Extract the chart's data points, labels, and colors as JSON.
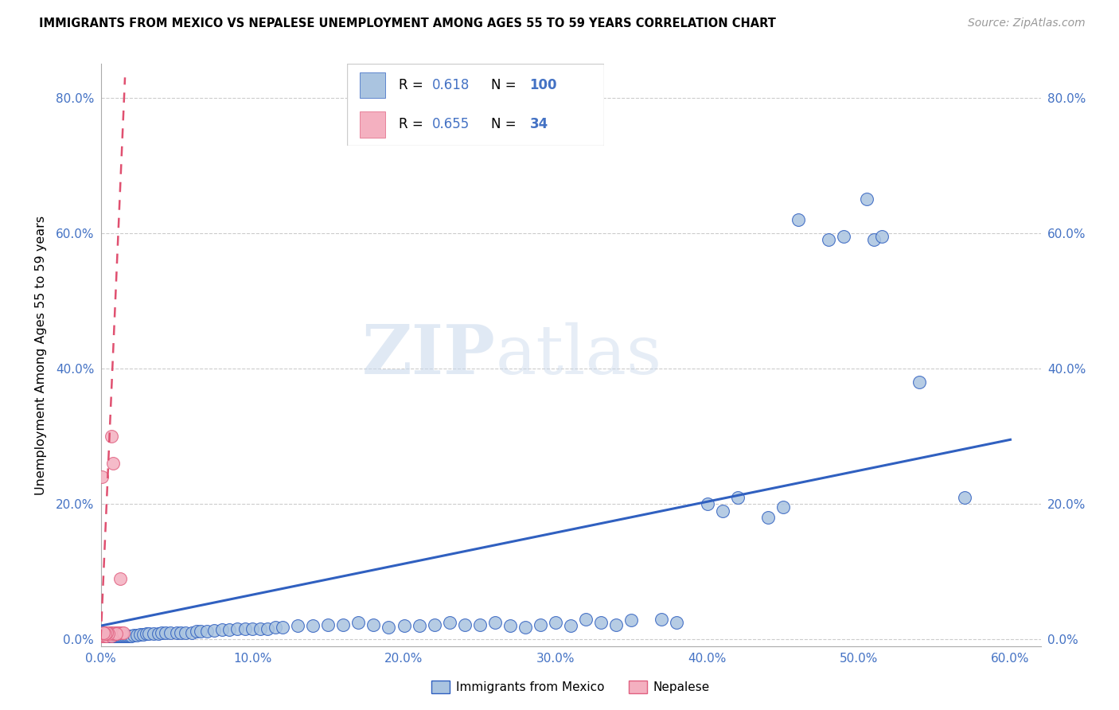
{
  "title": "IMMIGRANTS FROM MEXICO VS NEPALESE UNEMPLOYMENT AMONG AGES 55 TO 59 YEARS CORRELATION CHART",
  "source": "Source: ZipAtlas.com",
  "ylabel": "Unemployment Among Ages 55 to 59 years",
  "xlim": [
    0.0,
    0.62
  ],
  "ylim": [
    -0.01,
    0.85
  ],
  "xticks": [
    0.0,
    0.1,
    0.2,
    0.3,
    0.4,
    0.5,
    0.6
  ],
  "xticklabels": [
    "0.0%",
    "10.0%",
    "20.0%",
    "30.0%",
    "40.0%",
    "50.0%",
    "60.0%"
  ],
  "yticks": [
    0.0,
    0.2,
    0.4,
    0.6,
    0.8
  ],
  "yticklabels": [
    "0.0%",
    "20.0%",
    "40.0%",
    "60.0%",
    "80.0%"
  ],
  "color_mexico": "#aac4e0",
  "color_nepalese": "#f4b0c0",
  "color_line_mexico": "#3060c0",
  "color_line_nepalese": "#e05070",
  "color_axis": "#4472c4",
  "watermark_zip": "ZIP",
  "watermark_atlas": "atlas",
  "mexico_x": [
    0.001,
    0.001,
    0.002,
    0.002,
    0.002,
    0.003,
    0.003,
    0.003,
    0.004,
    0.004,
    0.005,
    0.005,
    0.005,
    0.006,
    0.006,
    0.006,
    0.007,
    0.007,
    0.008,
    0.008,
    0.009,
    0.009,
    0.01,
    0.01,
    0.011,
    0.012,
    0.013,
    0.014,
    0.015,
    0.016,
    0.017,
    0.018,
    0.019,
    0.02,
    0.022,
    0.024,
    0.026,
    0.028,
    0.03,
    0.032,
    0.035,
    0.038,
    0.04,
    0.043,
    0.046,
    0.05,
    0.053,
    0.056,
    0.06,
    0.063,
    0.066,
    0.07,
    0.075,
    0.08,
    0.085,
    0.09,
    0.095,
    0.1,
    0.105,
    0.11,
    0.115,
    0.12,
    0.13,
    0.14,
    0.15,
    0.16,
    0.17,
    0.18,
    0.19,
    0.2,
    0.21,
    0.22,
    0.23,
    0.24,
    0.25,
    0.26,
    0.27,
    0.28,
    0.29,
    0.3,
    0.31,
    0.32,
    0.33,
    0.34,
    0.35,
    0.37,
    0.38,
    0.4,
    0.41,
    0.42,
    0.44,
    0.45,
    0.46,
    0.48,
    0.49,
    0.505,
    0.51,
    0.515,
    0.54,
    0.57
  ],
  "mexico_y": [
    0.005,
    0.008,
    0.005,
    0.005,
    0.005,
    0.005,
    0.005,
    0.005,
    0.005,
    0.005,
    0.005,
    0.005,
    0.005,
    0.005,
    0.005,
    0.005,
    0.005,
    0.005,
    0.005,
    0.005,
    0.005,
    0.005,
    0.005,
    0.005,
    0.005,
    0.005,
    0.005,
    0.005,
    0.005,
    0.005,
    0.005,
    0.005,
    0.005,
    0.005,
    0.006,
    0.006,
    0.007,
    0.007,
    0.008,
    0.008,
    0.009,
    0.009,
    0.01,
    0.01,
    0.01,
    0.01,
    0.01,
    0.01,
    0.01,
    0.012,
    0.012,
    0.012,
    0.013,
    0.014,
    0.014,
    0.015,
    0.015,
    0.015,
    0.016,
    0.016,
    0.018,
    0.018,
    0.02,
    0.02,
    0.022,
    0.022,
    0.025,
    0.022,
    0.018,
    0.02,
    0.02,
    0.022,
    0.025,
    0.022,
    0.022,
    0.025,
    0.02,
    0.018,
    0.022,
    0.025,
    0.02,
    0.03,
    0.025,
    0.022,
    0.028,
    0.03,
    0.025,
    0.2,
    0.19,
    0.21,
    0.18,
    0.195,
    0.62,
    0.59,
    0.595,
    0.65,
    0.59,
    0.595,
    0.38,
    0.21
  ],
  "nepal_x": [
    0.001,
    0.001,
    0.001,
    0.001,
    0.002,
    0.002,
    0.002,
    0.003,
    0.003,
    0.003,
    0.004,
    0.004,
    0.005,
    0.005,
    0.006,
    0.006,
    0.007,
    0.007,
    0.008,
    0.009,
    0.01,
    0.011,
    0.012,
    0.013,
    0.014,
    0.015,
    0.01,
    0.008,
    0.007,
    0.005,
    0.004,
    0.003,
    0.002,
    0.001
  ],
  "nepal_y": [
    0.005,
    0.005,
    0.005,
    0.005,
    0.005,
    0.008,
    0.01,
    0.005,
    0.008,
    0.01,
    0.005,
    0.01,
    0.008,
    0.01,
    0.008,
    0.01,
    0.005,
    0.01,
    0.008,
    0.01,
    0.008,
    0.01,
    0.01,
    0.09,
    0.01,
    0.01,
    0.008,
    0.26,
    0.3,
    0.008,
    0.01,
    0.008,
    0.01,
    0.24
  ],
  "line_mexico_x0": 0.0,
  "line_mexico_x1": 0.6,
  "line_mexico_y0": 0.02,
  "line_mexico_y1": 0.295,
  "line_nepal_x0": 0.0,
  "line_nepal_x1": 0.016,
  "line_nepal_y0": 0.0,
  "line_nepal_y1": 0.83
}
